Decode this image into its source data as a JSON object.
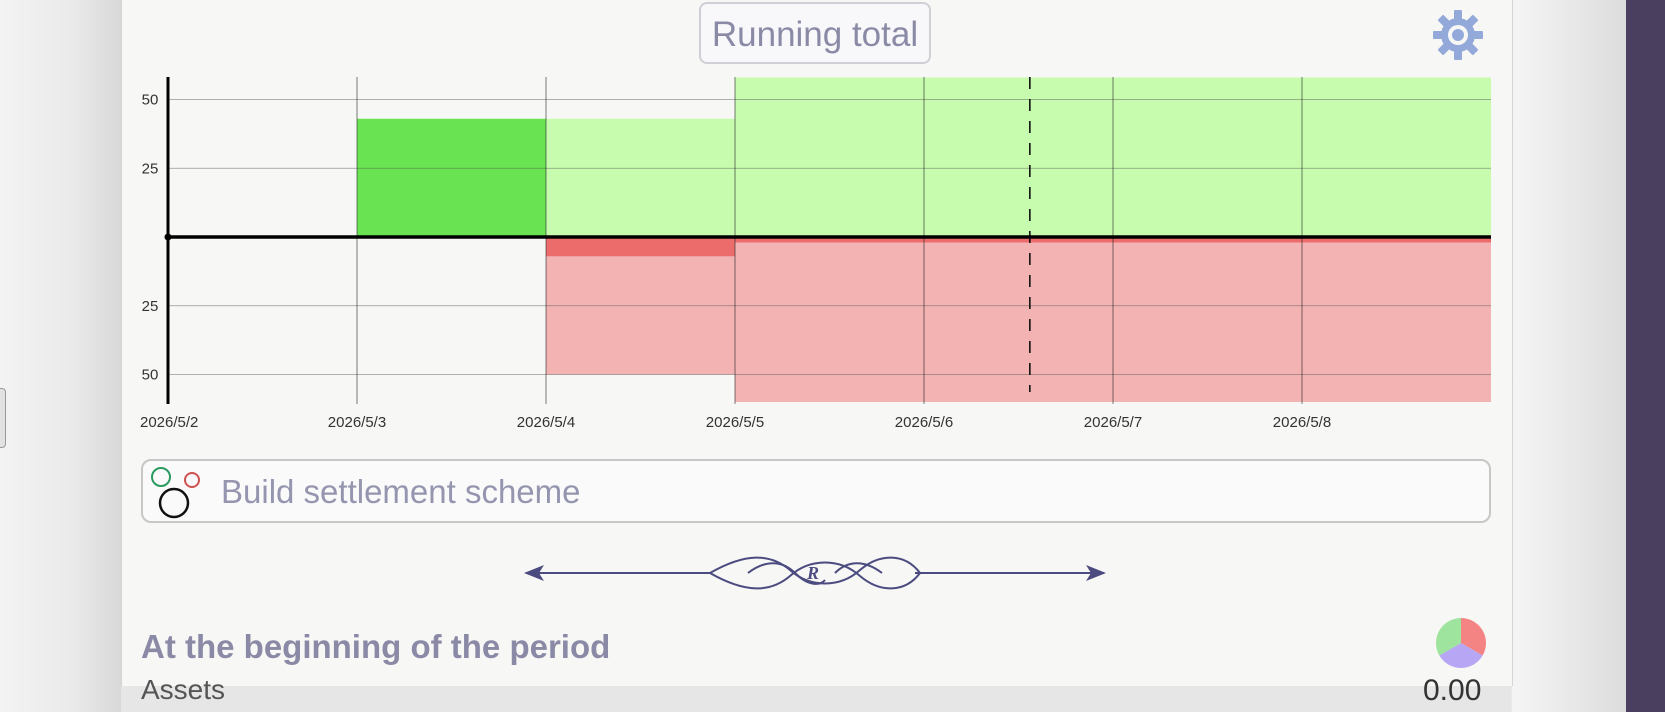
{
  "header": {
    "title": "Running total",
    "settings_icon": "gear-icon"
  },
  "colors": {
    "income_strong": "#6ae353",
    "income_light": "#c7fcae",
    "expense_strong": "#ec6c6c",
    "expense_light": "#f3b3b3",
    "accent_text": "#8a8aa6"
  },
  "chart_data": {
    "type": "bar",
    "title": "Running total",
    "xlabel": "",
    "ylabel": "",
    "categories": [
      "2026/5/2",
      "2026/5/3",
      "2026/5/4",
      "2026/5/5",
      "2026/5/6",
      "2026/5/7",
      "2026/5/8"
    ],
    "x_ticks": [
      "2026/5/2",
      "2026/5/3",
      "2026/5/4",
      "2026/5/5",
      "2026/5/6",
      "2026/5/7",
      "2026/5/8"
    ],
    "y_ticks_up": [
      50,
      25
    ],
    "y_ticks_down": [
      25,
      50
    ],
    "ylim": [
      -60,
      58
    ],
    "grid": true,
    "current_marker_day": 4.56,
    "series": [
      {
        "name": "",
        "kind": "income_strong",
        "segments": [
          {
            "start": 1,
            "end": 2,
            "value": 43
          }
        ]
      },
      {
        "name": "",
        "kind": "income_light",
        "segments": [
          {
            "start": 2,
            "end": 3,
            "value": 43
          },
          {
            "start": 3,
            "end": 7,
            "value": 58
          }
        ]
      },
      {
        "name": "",
        "kind": "expense_strong",
        "segments": [
          {
            "start": 2,
            "end": 3,
            "value": -7
          },
          {
            "start": 3,
            "end": 7,
            "value": -2
          }
        ]
      },
      {
        "name": "",
        "kind": "expense_light",
        "segments": [
          {
            "start": 2,
            "end": 3,
            "value": -50
          },
          {
            "start": 3,
            "end": 7,
            "value": -60
          }
        ]
      }
    ]
  },
  "build": {
    "label": "Build settlement scheme",
    "icon": "circles-icon"
  },
  "ornament": {
    "letter": "R"
  },
  "period": {
    "title": "At the beginning of the period",
    "icon": "pie-chart-icon",
    "row_label": "Assets",
    "row_value": "0.00"
  }
}
